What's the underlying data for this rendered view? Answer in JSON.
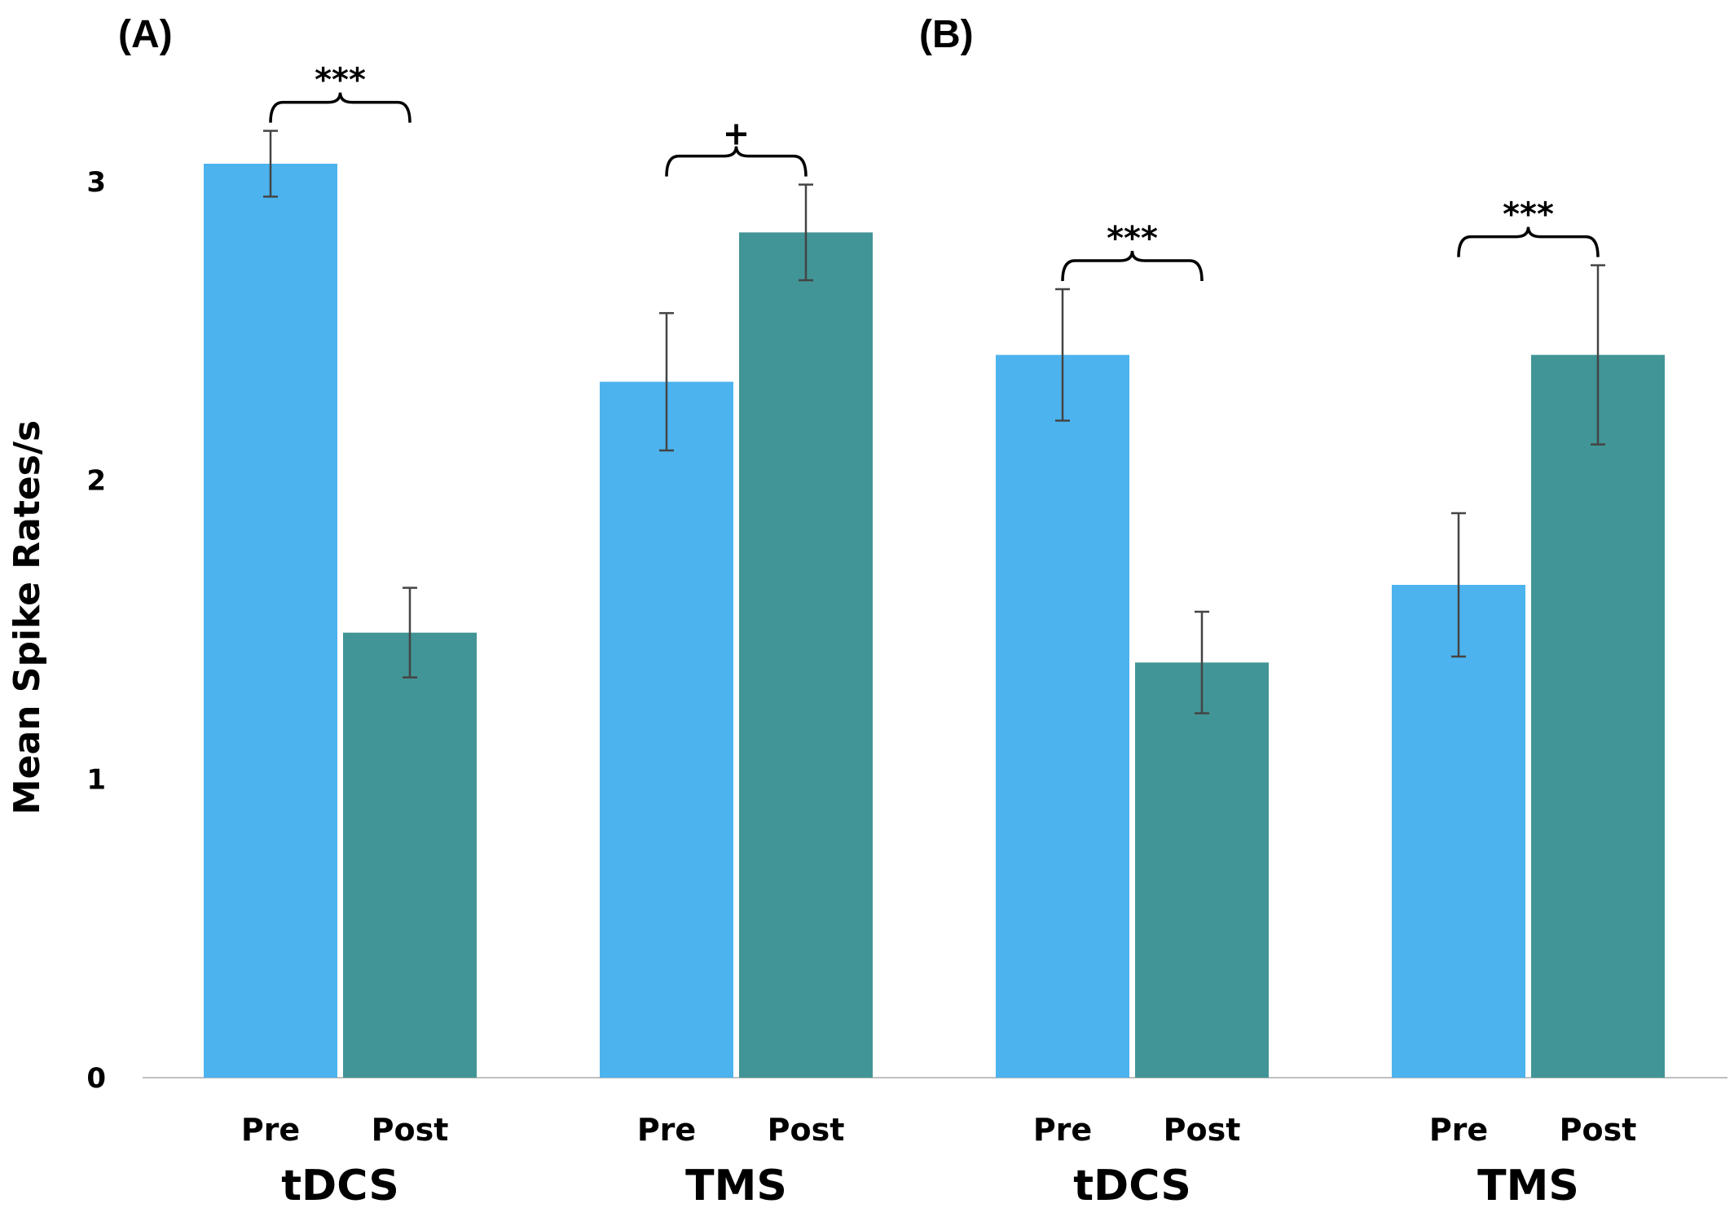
{
  "chart_data": {
    "type": "bar",
    "ylabel": "Mean Spike Rates/s",
    "ylim": [
      0,
      3
    ],
    "yticks": [
      "0",
      "1",
      "2",
      "3"
    ],
    "grid": false,
    "colors": {
      "pre": "#4CB3EE",
      "post": "#429596",
      "error": "#444444",
      "axis": "#bfbfbf"
    },
    "panels": [
      {
        "label": "(A)"
      },
      {
        "label": "(B)"
      }
    ],
    "groups": [
      {
        "name": "tDCS",
        "panel": 0,
        "significance": "***",
        "bars": [
          {
            "label": "Pre",
            "series": "pre",
            "value": 3.06,
            "error": 0.11
          },
          {
            "label": "Post",
            "series": "post",
            "value": 1.49,
            "error": 0.15
          }
        ]
      },
      {
        "name": "TMS",
        "panel": 0,
        "significance": "+",
        "bars": [
          {
            "label": "Pre",
            "series": "pre",
            "value": 2.33,
            "error": 0.23
          },
          {
            "label": "Post",
            "series": "post",
            "value": 2.83,
            "error": 0.16
          }
        ]
      },
      {
        "name": "tDCS",
        "panel": 1,
        "significance": "***",
        "bars": [
          {
            "label": "Pre",
            "series": "pre",
            "value": 2.42,
            "error": 0.22
          },
          {
            "label": "Post",
            "series": "post",
            "value": 1.39,
            "error": 0.17
          }
        ]
      },
      {
        "name": "TMS",
        "panel": 1,
        "significance": "***",
        "bars": [
          {
            "label": "Pre",
            "series": "pre",
            "value": 1.65,
            "error": 0.24
          },
          {
            "label": "Post",
            "series": "post",
            "value": 2.42,
            "error": 0.3
          }
        ]
      }
    ]
  }
}
